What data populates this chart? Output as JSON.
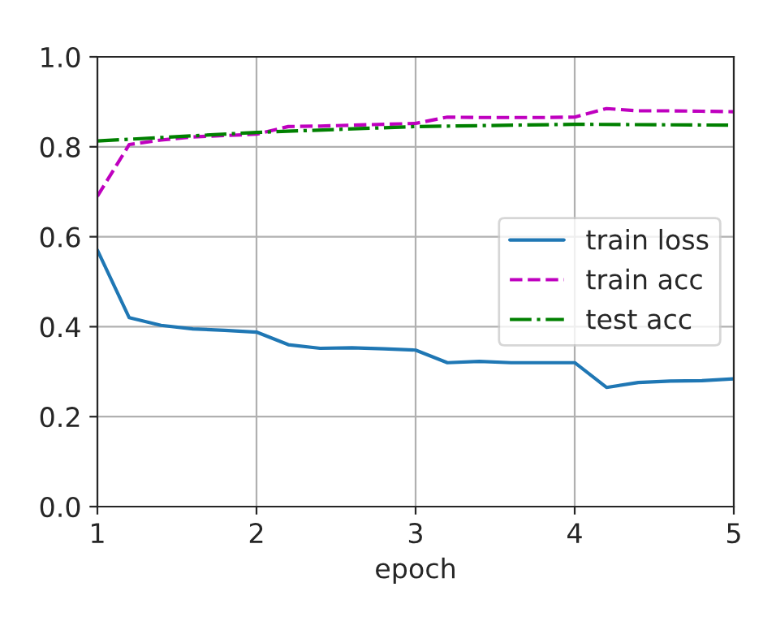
{
  "chart_data": {
    "type": "line",
    "xlabel": "epoch",
    "xlim": [
      1,
      5
    ],
    "xticks": [
      1,
      2,
      3,
      4,
      5
    ],
    "ylim": [
      0,
      1
    ],
    "yticks": [
      {
        "value": 0,
        "label": "0.0"
      },
      0.2,
      0.4,
      0.6,
      0.8,
      {
        "value": 1,
        "label": "1.0"
      }
    ],
    "grid": true,
    "legend": "right",
    "series": [
      {
        "name": "train loss",
        "color": "#1f77b4",
        "line_style": "solid",
        "x": [
          1,
          1.2,
          1.4,
          1.6,
          1.8,
          2,
          2.2,
          2.4,
          2.6,
          2.8,
          3,
          3.2,
          3.4,
          3.6,
          3.8,
          4,
          4.2,
          4.4,
          4.6,
          4.8,
          5
        ],
        "values": [
          0.57,
          0.42,
          0.403,
          0.395,
          0.392,
          0.388,
          0.36,
          0.352,
          0.353,
          0.351,
          0.348,
          0.32,
          0.323,
          0.32,
          0.32,
          0.32,
          0.265,
          0.276,
          0.279,
          0.28,
          0.284
        ]
      },
      {
        "name": "train acc",
        "color": "#bf00bf",
        "line_style": "dashed",
        "x": [
          1,
          1.2,
          1.4,
          1.6,
          1.8,
          2,
          2.2,
          2.4,
          2.6,
          2.8,
          3,
          3.2,
          3.4,
          3.6,
          3.8,
          4,
          4.2,
          4.4,
          4.6,
          4.8,
          5
        ],
        "values": [
          0.69,
          0.805,
          0.815,
          0.822,
          0.825,
          0.828,
          0.845,
          0.846,
          0.848,
          0.85,
          0.852,
          0.866,
          0.865,
          0.865,
          0.865,
          0.866,
          0.885,
          0.88,
          0.88,
          0.879,
          0.878
        ]
      },
      {
        "name": "test acc",
        "color": "#008000",
        "line_style": "dashdot",
        "x": [
          1,
          2,
          3,
          4,
          5
        ],
        "values": [
          0.813,
          0.832,
          0.845,
          0.85,
          0.848
        ]
      }
    ]
  }
}
